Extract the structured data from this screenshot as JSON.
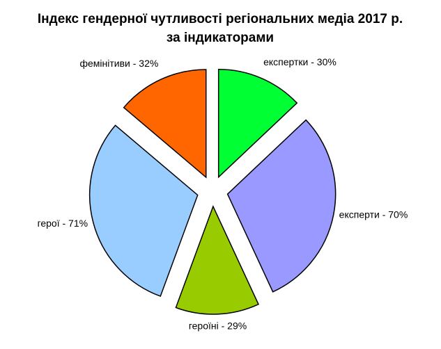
{
  "chart_data": {
    "type": "pie",
    "title": [
      "Індекс гендерної чутливості регіональних медіа 2017 р.",
      "за індикаторами"
    ],
    "values": [
      30,
      70,
      29,
      71,
      32
    ],
    "value_labels": [
      "експертки - 30%",
      "експерти - 70%",
      "героїні - 29%",
      "герої - 71%",
      "фемінітиви - 32%"
    ],
    "colors": [
      "#00ff33",
      "#9999ff",
      "#99cc00",
      "#99ccff",
      "#ff6600"
    ]
  }
}
